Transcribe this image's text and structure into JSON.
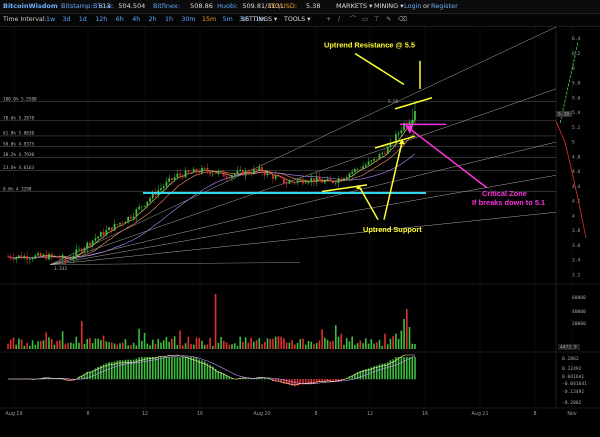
{
  "header": {
    "brand": "BitcoinWisdom",
    "tickers": [
      {
        "name": "Bitstamp:",
        "value": "513",
        "x": 61
      },
      {
        "name": "BTC-e:",
        "value": "504.504",
        "x": 93
      },
      {
        "name": "Bitfinex:",
        "value": "508.86",
        "x": 153
      },
      {
        "name": "Huobi:",
        "value": "509.81/3131",
        "x": 217
      }
    ],
    "ltc": {
      "name": "LTC/USD:",
      "value": "5.38"
    },
    "markets": "MARKETS ▾",
    "mining": "MINING ▾",
    "login": "Login",
    "or": "or",
    "register": "Register"
  },
  "toolbar": {
    "label": "Time Interval:",
    "intervals": [
      "1w",
      "3d",
      "1d",
      "12h",
      "6h",
      "4h",
      "2h",
      "1h",
      "30m",
      "15m",
      "5m",
      "3m",
      "1m"
    ],
    "active": "15m",
    "settings": "SETTINGS ▾",
    "tools": "TOOLS ▾",
    "tool_icons": [
      "+",
      "∕",
      "⌒",
      "▭",
      "⊤",
      "✎",
      "⌫"
    ]
  },
  "chart_data": {
    "type": "candlestick",
    "price_axis": {
      "ticks": [
        "6.4",
        "6.2",
        "6",
        "5.8",
        "5.6",
        "5.4",
        "5.2",
        "5",
        "4.8",
        "4.6",
        "4.4",
        "4.2",
        "4",
        "3.8",
        "3.6",
        "3.4",
        "3.2"
      ],
      "range": [
        3.2,
        6.45
      ]
    },
    "x_ticks": [
      "Aug 19",
      "8",
      "12",
      "16",
      "Aug 20",
      "8",
      "12",
      "16",
      "Aug 21",
      "8",
      "Nov"
    ],
    "fib_levels": [
      {
        "label": "100.0% 5.5500",
        "value": 5.55
      },
      {
        "label": "78.6% 5.2878",
        "value": 5.2878
      },
      {
        "label": "61.8% 5.0830",
        "value": 5.083
      },
      {
        "label": "50.0% 4.9375",
        "value": 4.9375
      },
      {
        "label": "38.2% 4.7930",
        "value": 4.793
      },
      {
        "label": "23.6% 4.6163",
        "value": 4.6163
      },
      {
        "label": "0.0% 4.3290",
        "value": 4.329
      }
    ],
    "low_label": "3.333",
    "high_label": "5.55",
    "last_price": "5.38",
    "volume_axis": {
      "ticks": [
        "60000",
        "40000",
        "20000"
      ],
      "last": "4473.9"
    },
    "macd_axis": {
      "ticks": [
        "0.2862",
        "0.12492",
        "0.041641",
        "-0.041641",
        "-0.12492",
        "-0.2082"
      ]
    },
    "annotations": {
      "resistance": "Uptrend Resistance @ 5.5",
      "support": "Uptrend Support",
      "critical_line1": "Critical Zone",
      "critical_line2": "If breaks down to 5.1"
    },
    "colors": {
      "up": "#3fbf3f",
      "down": "#e03030",
      "yellow": "#ffff33",
      "cyan": "#33d6e8",
      "magenta": "#ff33dd"
    }
  }
}
